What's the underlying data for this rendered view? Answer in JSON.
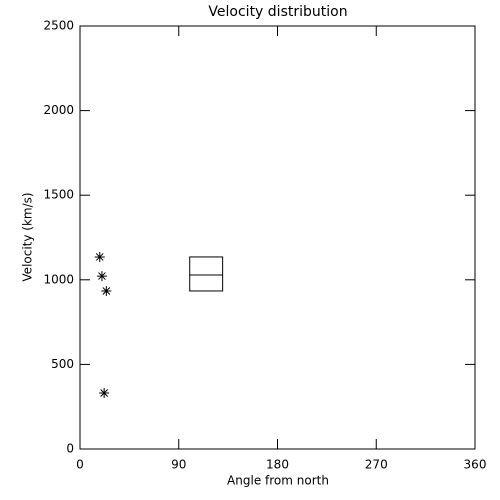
{
  "chart_data": {
    "type": "scatter",
    "title": "Velocity distribution",
    "x_label": "Angle from north",
    "y_label": "Velocity (km/s)",
    "x": [
      18,
      20,
      24,
      22
    ],
    "y": [
      1135,
      1022,
      934,
      331
    ],
    "box": {
      "x": [
        100,
        130
      ],
      "low": 934,
      "mid": 1028,
      "high": 1135
    },
    "xlim": [
      0,
      360
    ],
    "xticks": [
      0,
      90,
      180,
      270,
      360
    ],
    "ylim": [
      0,
      2500
    ],
    "yticks": [
      0,
      500,
      1000,
      1500,
      2000,
      2500
    ],
    "color": "#000000"
  }
}
